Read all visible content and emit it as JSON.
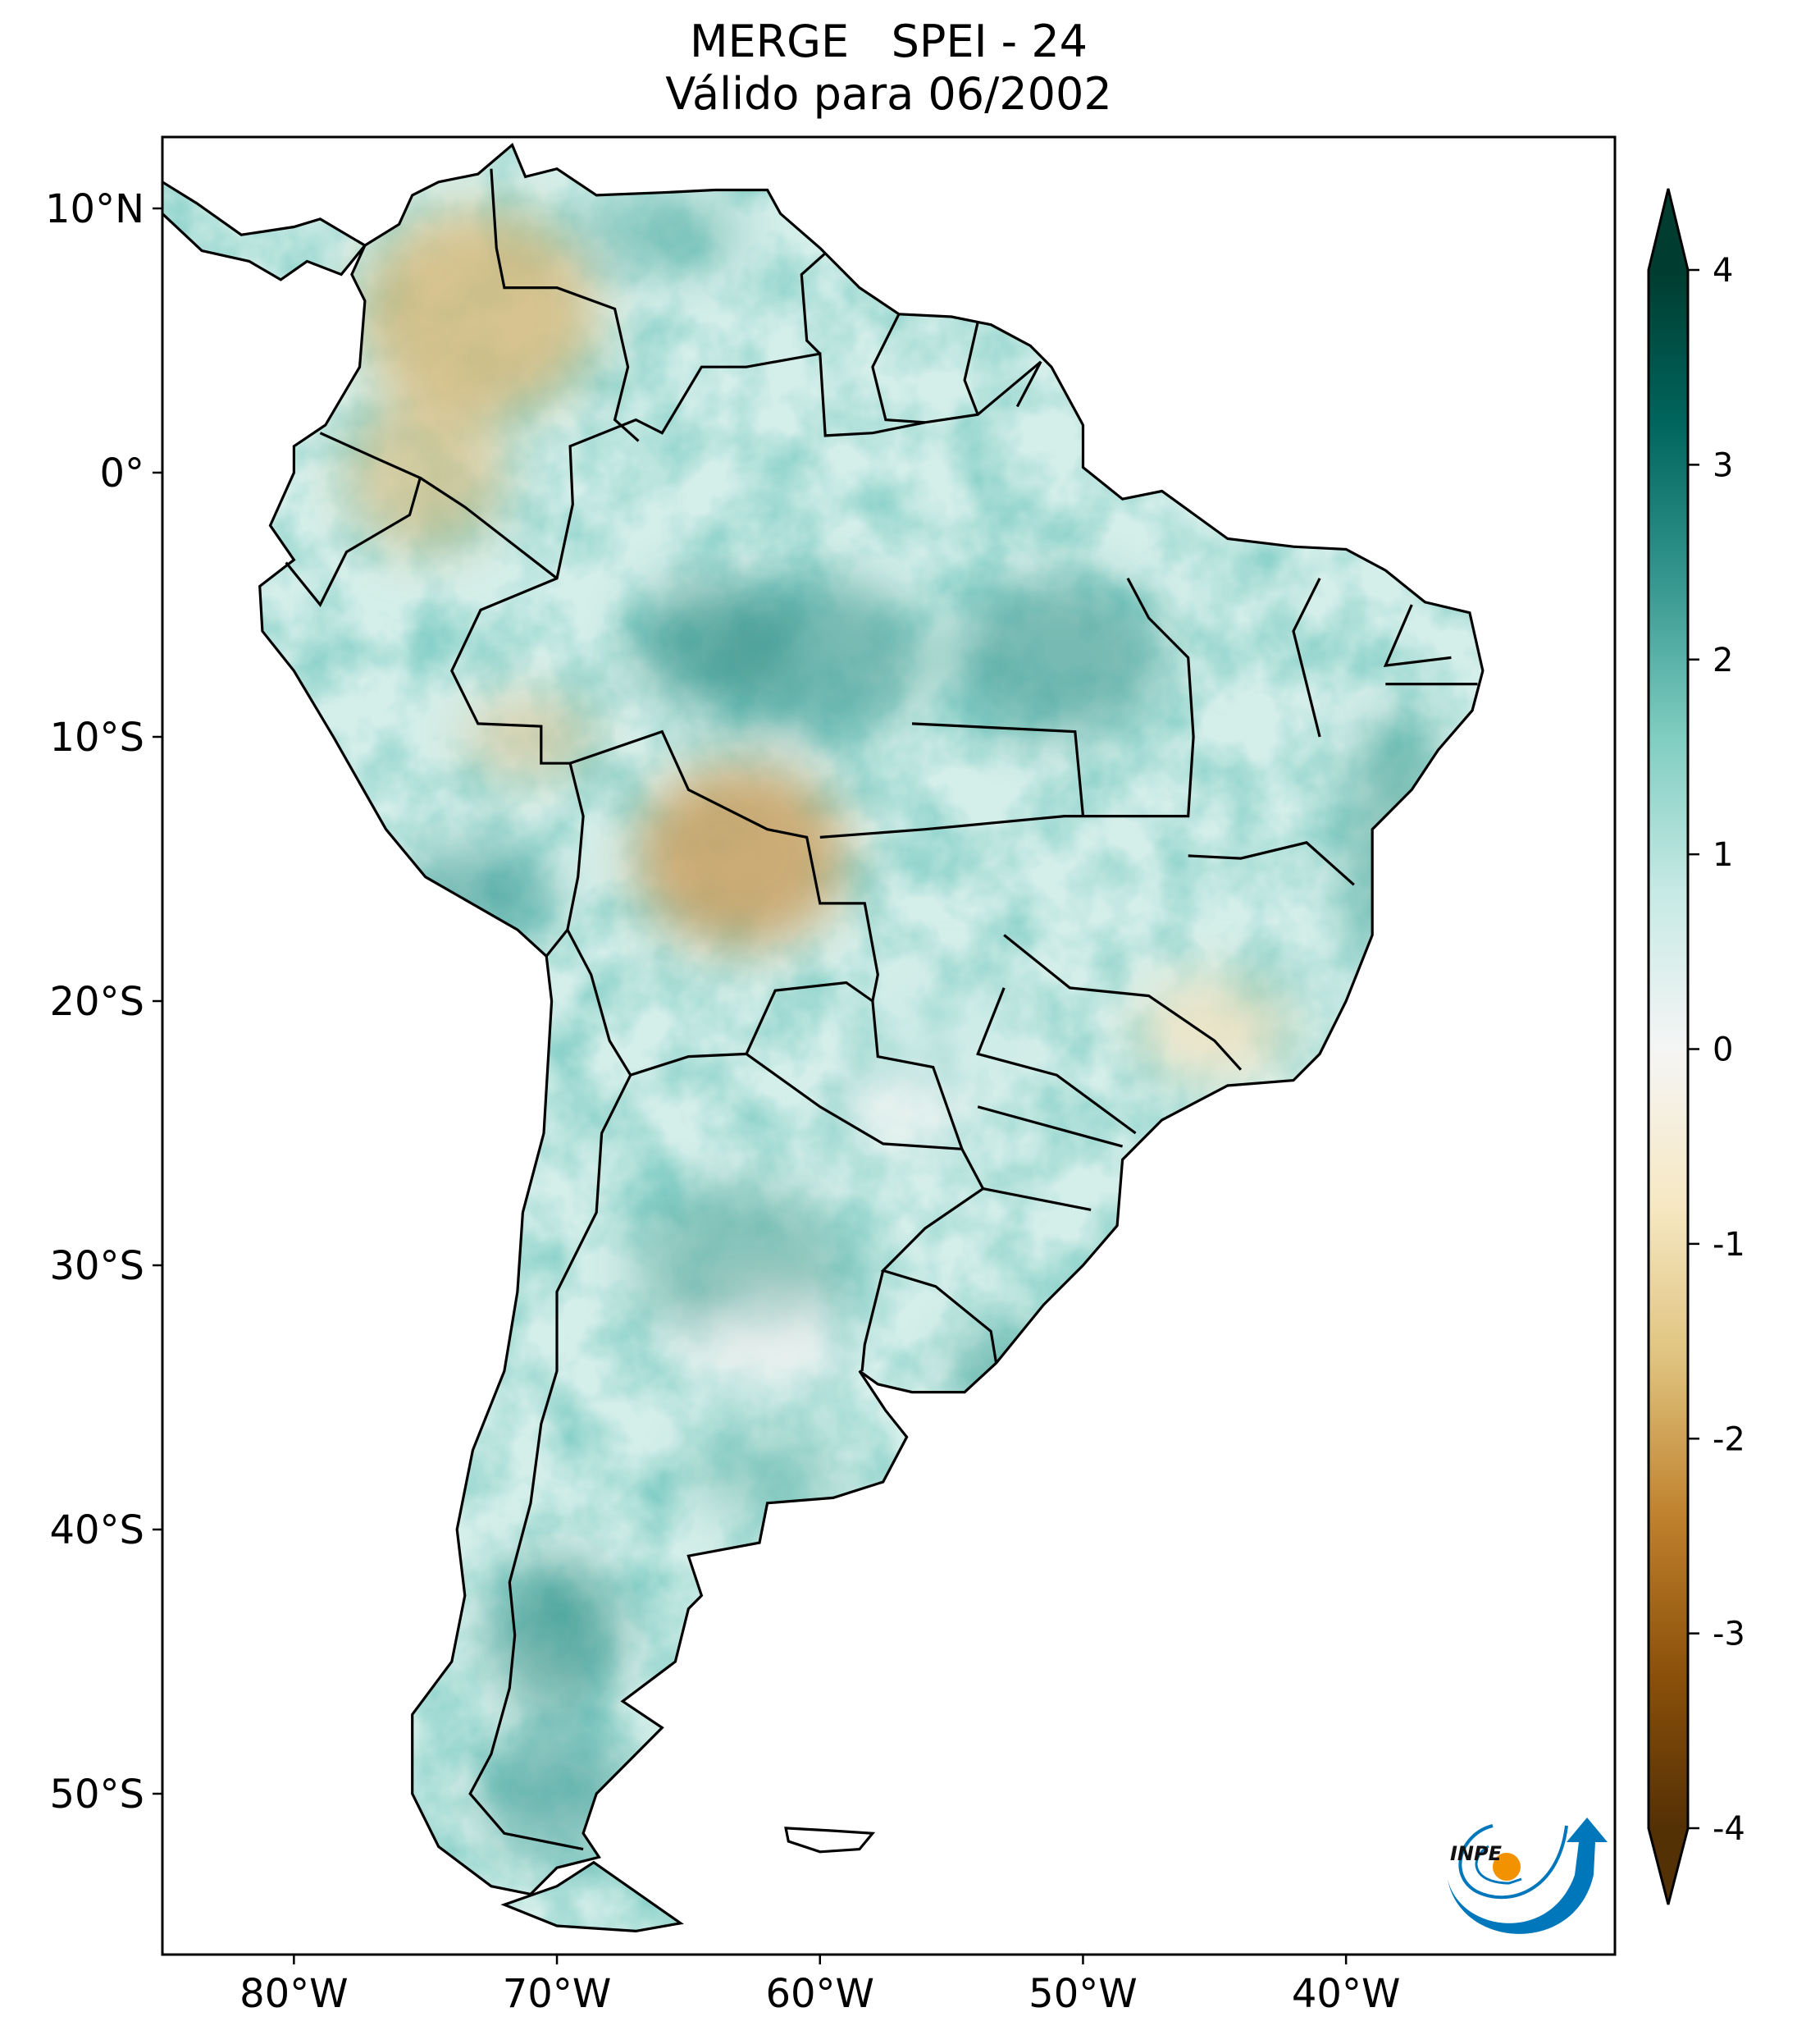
{
  "title": {
    "line1": "MERGE   SPEI - 24",
    "line2": "Válido para 06/2002"
  },
  "map": {
    "extent_lon": [
      -85,
      -30
    ],
    "extent_lat": [
      -56,
      13
    ],
    "lat_ticks": [
      {
        "value": 10,
        "label": "10°N"
      },
      {
        "value": 0,
        "label": "0°"
      },
      {
        "value": -10,
        "label": "10°S"
      },
      {
        "value": -20,
        "label": "20°S"
      },
      {
        "value": -30,
        "label": "30°S"
      },
      {
        "value": -40,
        "label": "40°S"
      },
      {
        "value": -50,
        "label": "50°S"
      }
    ],
    "lon_ticks": [
      {
        "value": -80,
        "label": "80°W"
      },
      {
        "value": -70,
        "label": "70°W"
      },
      {
        "value": -60,
        "label": "60°W"
      },
      {
        "value": -50,
        "label": "50°W"
      },
      {
        "value": -40,
        "label": "40°W"
      }
    ]
  },
  "colorbar": {
    "colormap": "BrBG",
    "range": [
      -4,
      4
    ],
    "extend": "both",
    "ticks": [
      {
        "value": 4,
        "label": "4"
      },
      {
        "value": 3,
        "label": "3"
      },
      {
        "value": 2,
        "label": "2"
      },
      {
        "value": 1,
        "label": "1"
      },
      {
        "value": 0,
        "label": "0"
      },
      {
        "value": -1,
        "label": "-1"
      },
      {
        "value": -2,
        "label": "-2"
      },
      {
        "value": -3,
        "label": "-3"
      },
      {
        "value": -4,
        "label": "-4"
      }
    ],
    "colors": [
      "#543005",
      "#8c510a",
      "#bf812d",
      "#dfc27d",
      "#f6e8c3",
      "#f5f5f5",
      "#c7eae5",
      "#80cdc1",
      "#35978f",
      "#01665e",
      "#003c30"
    ]
  },
  "logo": {
    "text": "INPE",
    "blue": "#0077bb",
    "orange": "#f39200"
  }
}
